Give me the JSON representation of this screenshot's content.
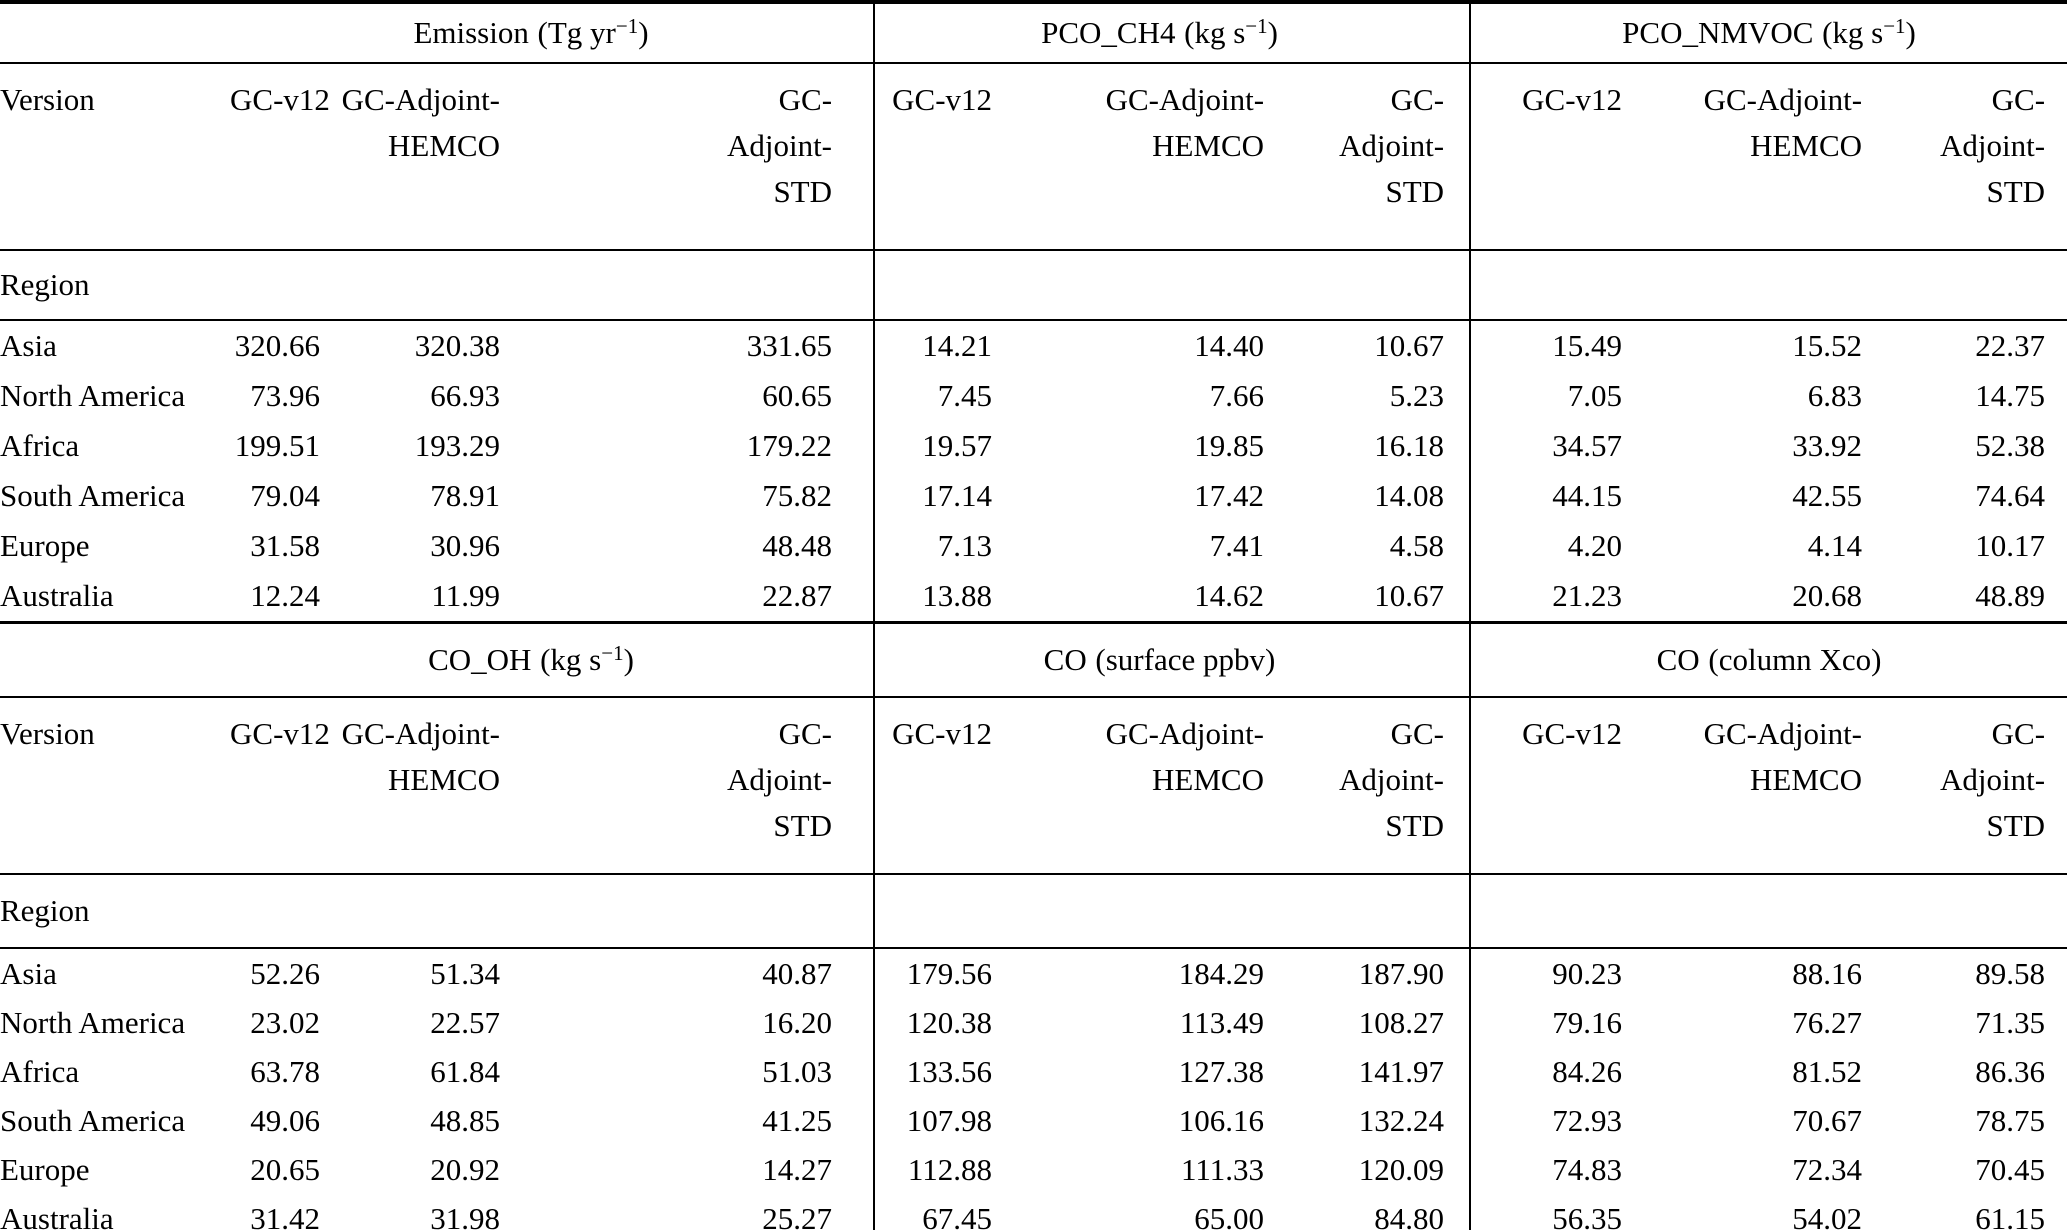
{
  "version_label": "Version",
  "region_label": "Region",
  "regions": [
    "Asia",
    "North America",
    "Africa",
    "South America",
    "Europe",
    "Australia"
  ],
  "version_columns": [
    [
      "GC-v12"
    ],
    [
      "GC-Adjoint-",
      "HEMCO"
    ],
    [
      "GC-",
      "Adjoint-",
      "STD"
    ]
  ],
  "chart_data": {
    "type": "table",
    "column_models": [
      "GC-v12",
      "GC-Adjoint-HEMCO",
      "GC-Adjoint-STD"
    ],
    "row_regions": [
      "Asia",
      "North America",
      "Africa",
      "South America",
      "Europe",
      "Australia"
    ]
  },
  "tables": [
    {
      "groups": [
        {
          "title": "Emission",
          "unit_pre": "(Tg yr",
          "unit_sup": "−1",
          "unit_post": ")",
          "values": [
            [
              "320.66",
              "320.38",
              "331.65"
            ],
            [
              "73.96",
              "66.93",
              "60.65"
            ],
            [
              "199.51",
              "193.29",
              "179.22"
            ],
            [
              "79.04",
              "78.91",
              "75.82"
            ],
            [
              "31.58",
              "30.96",
              "48.48"
            ],
            [
              "12.24",
              "11.99",
              "22.87"
            ]
          ]
        },
        {
          "title": "PCO_CH4",
          "unit_pre": "(kg s",
          "unit_sup": "−1",
          "unit_post": ")",
          "values": [
            [
              "14.21",
              "14.40",
              "10.67"
            ],
            [
              "7.45",
              "7.66",
              "5.23"
            ],
            [
              "19.57",
              "19.85",
              "16.18"
            ],
            [
              "17.14",
              "17.42",
              "14.08"
            ],
            [
              "7.13",
              "7.41",
              "4.58"
            ],
            [
              "13.88",
              "14.62",
              "10.67"
            ]
          ]
        },
        {
          "title": "PCO_NMVOC",
          "unit_pre": "(kg s",
          "unit_sup": "−1",
          "unit_post": ")",
          "values": [
            [
              "15.49",
              "15.52",
              "22.37"
            ],
            [
              "7.05",
              "6.83",
              "14.75"
            ],
            [
              "34.57",
              "33.92",
              "52.38"
            ],
            [
              "44.15",
              "42.55",
              "74.64"
            ],
            [
              "4.20",
              "4.14",
              "10.17"
            ],
            [
              "21.23",
              "20.68",
              "48.89"
            ]
          ]
        }
      ]
    },
    {
      "groups": [
        {
          "title": "CO_OH",
          "unit_pre": "(kg s",
          "unit_sup": "−1",
          "unit_post": ")",
          "values": [
            [
              "52.26",
              "51.34",
              "40.87"
            ],
            [
              "23.02",
              "22.57",
              "16.20"
            ],
            [
              "63.78",
              "61.84",
              "51.03"
            ],
            [
              "49.06",
              "48.85",
              "41.25"
            ],
            [
              "20.65",
              "20.92",
              "14.27"
            ],
            [
              "31.42",
              "31.98",
              "25.27"
            ]
          ]
        },
        {
          "title": "CO",
          "unit_pre": "(surface ppbv)",
          "unit_sup": "",
          "unit_post": "",
          "values": [
            [
              "179.56",
              "184.29",
              "187.90"
            ],
            [
              "120.38",
              "113.49",
              "108.27"
            ],
            [
              "133.56",
              "127.38",
              "141.97"
            ],
            [
              "107.98",
              "106.16",
              "132.24"
            ],
            [
              "112.88",
              "111.33",
              "120.09"
            ],
            [
              "67.45",
              "65.00",
              "84.80"
            ]
          ]
        },
        {
          "title": "CO",
          "unit_pre": "(column Xco)",
          "unit_sup": "",
          "unit_post": "",
          "values": [
            [
              "90.23",
              "88.16",
              "89.58"
            ],
            [
              "79.16",
              "76.27",
              "71.35"
            ],
            [
              "84.26",
              "81.52",
              "86.36"
            ],
            [
              "72.93",
              "70.67",
              "78.75"
            ],
            [
              "74.83",
              "72.34",
              "70.45"
            ],
            [
              "56.35",
              "54.02",
              "61.15"
            ]
          ]
        }
      ]
    }
  ]
}
